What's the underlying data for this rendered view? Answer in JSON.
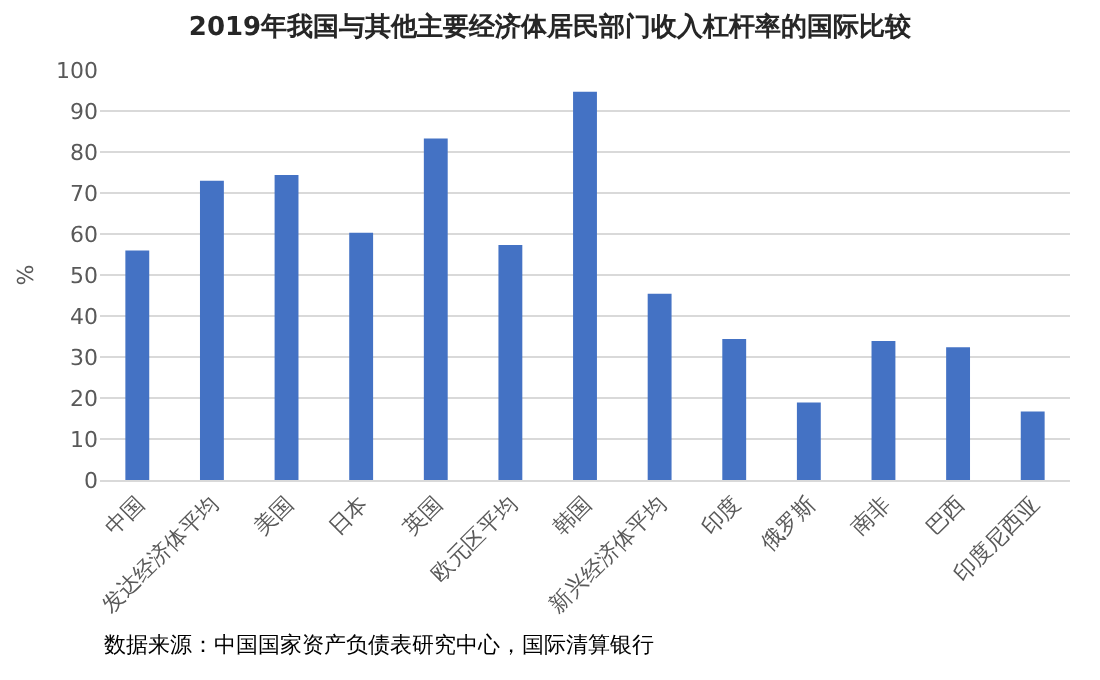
{
  "chart_data": {
    "type": "bar",
    "title": "2019年我国与其他主要经济体居民部门收入杠杆率的国际比较",
    "ylabel": "%",
    "categories": [
      "中国",
      "发达经济体平均",
      "美国",
      "日本",
      "英国",
      "欧元区平均",
      "韩国",
      "新兴经济体平均",
      "印度",
      "俄罗斯",
      "南非",
      "巴西",
      "印度尼西亚"
    ],
    "values": [
      56,
      73,
      74.4,
      60.3,
      83.3,
      57.3,
      94.7,
      45.4,
      34.4,
      18.9,
      33.9,
      32.4,
      16.7
    ],
    "color": "#4472c4",
    "ylim": [
      0,
      100
    ],
    "yticks": [
      0,
      10,
      20,
      30,
      40,
      50,
      60,
      70,
      80,
      90,
      100
    ],
    "grid": "y",
    "annotations": [
      "数据来源：中国国家资产负债表研究中心，国际清算银行"
    ]
  }
}
